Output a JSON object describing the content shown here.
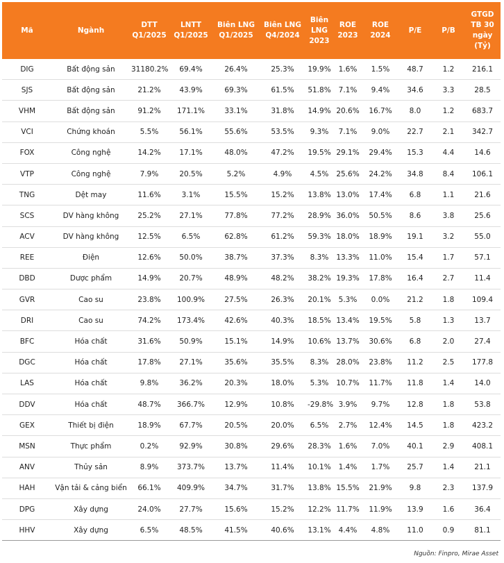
{
  "table": {
    "header": [
      [
        "Mã"
      ],
      [
        "Ngành"
      ],
      [
        "DTT",
        "Q1/2025"
      ],
      [
        "LNTT",
        "Q1/2025"
      ],
      [
        "Biên LNG",
        "Q1/2025"
      ],
      [
        "Biên LNG",
        "Q4/2024"
      ],
      [
        "Biên",
        "LNG",
        "2023"
      ],
      [
        "ROE",
        "2023"
      ],
      [
        "ROE",
        "2024"
      ],
      [
        "P/E"
      ],
      [
        "P/B"
      ],
      [
        "GTGD",
        "TB 30",
        "ngày",
        "(Tỷ)"
      ]
    ],
    "rows": [
      [
        "DIG",
        "Bất động sản",
        "31180.2%",
        "69.4%",
        "26.4%",
        "25.3%",
        "19.9%",
        "1.6%",
        "1.5%",
        "48.7",
        "1.2",
        "216.1"
      ],
      [
        "SJS",
        "Bất động sản",
        "21.2%",
        "43.9%",
        "69.3%",
        "61.5%",
        "51.8%",
        "7.1%",
        "9.4%",
        "34.6",
        "3.3",
        "28.5"
      ],
      [
        "VHM",
        "Bất động sản",
        "91.2%",
        "171.1%",
        "33.1%",
        "31.8%",
        "14.9%",
        "20.6%",
        "16.7%",
        "8.0",
        "1.2",
        "683.7"
      ],
      [
        "VCI",
        "Chứng khoán",
        "5.5%",
        "56.1%",
        "55.6%",
        "53.5%",
        "9.3%",
        "7.1%",
        "9.0%",
        "22.7",
        "2.1",
        "342.7"
      ],
      [
        "FOX",
        "Công nghệ",
        "14.2%",
        "17.1%",
        "48.0%",
        "47.2%",
        "19.5%",
        "29.1%",
        "29.4%",
        "15.3",
        "4.4",
        "14.6"
      ],
      [
        "VTP",
        "Công nghệ",
        "7.9%",
        "20.5%",
        "5.2%",
        "4.9%",
        "4.5%",
        "25.6%",
        "24.2%",
        "34.8",
        "8.4",
        "106.1"
      ],
      [
        "TNG",
        "Dệt may",
        "11.6%",
        "3.1%",
        "15.5%",
        "15.2%",
        "13.8%",
        "13.0%",
        "17.4%",
        "6.8",
        "1.1",
        "21.6"
      ],
      [
        "SCS",
        "DV hàng không",
        "25.2%",
        "27.1%",
        "77.8%",
        "77.2%",
        "28.9%",
        "36.0%",
        "50.5%",
        "8.6",
        "3.8",
        "25.6"
      ],
      [
        "ACV",
        "DV hàng không",
        "12.5%",
        "6.5%",
        "62.8%",
        "61.2%",
        "59.3%",
        "18.0%",
        "18.9%",
        "19.1",
        "3.2",
        "55.0"
      ],
      [
        "REE",
        "Điện",
        "12.6%",
        "50.0%",
        "38.7%",
        "37.3%",
        "8.3%",
        "13.3%",
        "11.0%",
        "15.4",
        "1.7",
        "57.1"
      ],
      [
        "DBD",
        "Dược phẩm",
        "14.9%",
        "20.7%",
        "48.9%",
        "48.2%",
        "38.2%",
        "19.3%",
        "17.8%",
        "16.4",
        "2.7",
        "11.4"
      ],
      [
        "GVR",
        "Cao su",
        "23.8%",
        "100.9%",
        "27.5%",
        "26.3%",
        "20.1%",
        "5.3%",
        "0.0%",
        "21.2",
        "1.8",
        "109.4"
      ],
      [
        "DRI",
        "Cao su",
        "74.2%",
        "173.4%",
        "42.6%",
        "40.3%",
        "18.5%",
        "13.4%",
        "19.5%",
        "5.8",
        "1.3",
        "13.7"
      ],
      [
        "BFC",
        "Hóa chất",
        "31.6%",
        "50.9%",
        "15.1%",
        "14.9%",
        "10.6%",
        "13.7%",
        "30.6%",
        "6.8",
        "2.0",
        "27.4"
      ],
      [
        "DGC",
        "Hóa chất",
        "17.8%",
        "27.1%",
        "35.6%",
        "35.5%",
        "8.3%",
        "28.0%",
        "23.8%",
        "11.2",
        "2.5",
        "177.8"
      ],
      [
        "LAS",
        "Hóa chất",
        "9.8%",
        "36.2%",
        "20.3%",
        "18.0%",
        "5.3%",
        "10.7%",
        "11.7%",
        "11.8",
        "1.4",
        "14.0"
      ],
      [
        "DDV",
        "Hóa chất",
        "48.7%",
        "366.7%",
        "12.9%",
        "10.8%",
        "-29.8%",
        "3.9%",
        "9.7%",
        "12.8",
        "1.8",
        "53.8"
      ],
      [
        "GEX",
        "Thiết bị điện",
        "18.9%",
        "67.7%",
        "20.5%",
        "20.0%",
        "6.5%",
        "2.7%",
        "12.4%",
        "14.5",
        "1.8",
        "423.2"
      ],
      [
        "MSN",
        "Thực phẩm",
        "0.2%",
        "92.9%",
        "30.8%",
        "29.6%",
        "28.3%",
        "1.6%",
        "7.0%",
        "40.1",
        "2.9",
        "408.1"
      ],
      [
        "ANV",
        "Thủy sản",
        "8.9%",
        "373.7%",
        "13.7%",
        "11.4%",
        "10.1%",
        "1.4%",
        "1.7%",
        "25.7",
        "1.4",
        "21.1"
      ],
      [
        "HAH",
        "Vận tải & cảng biển",
        "66.1%",
        "409.9%",
        "34.7%",
        "31.7%",
        "13.8%",
        "15.5%",
        "21.9%",
        "9.8",
        "2.3",
        "137.9"
      ],
      [
        "DPG",
        "Xây dựng",
        "24.0%",
        "27.7%",
        "15.6%",
        "15.2%",
        "12.2%",
        "11.7%",
        "11.9%",
        "13.9",
        "1.6",
        "36.4"
      ],
      [
        "HHV",
        "Xây dựng",
        "6.5%",
        "48.5%",
        "41.5%",
        "40.6%",
        "13.1%",
        "4.4%",
        "4.8%",
        "11.0",
        "0.9",
        "81.1"
      ]
    ]
  },
  "footer": {
    "source": "Nguồn: Finpro, Mirae Asset"
  }
}
